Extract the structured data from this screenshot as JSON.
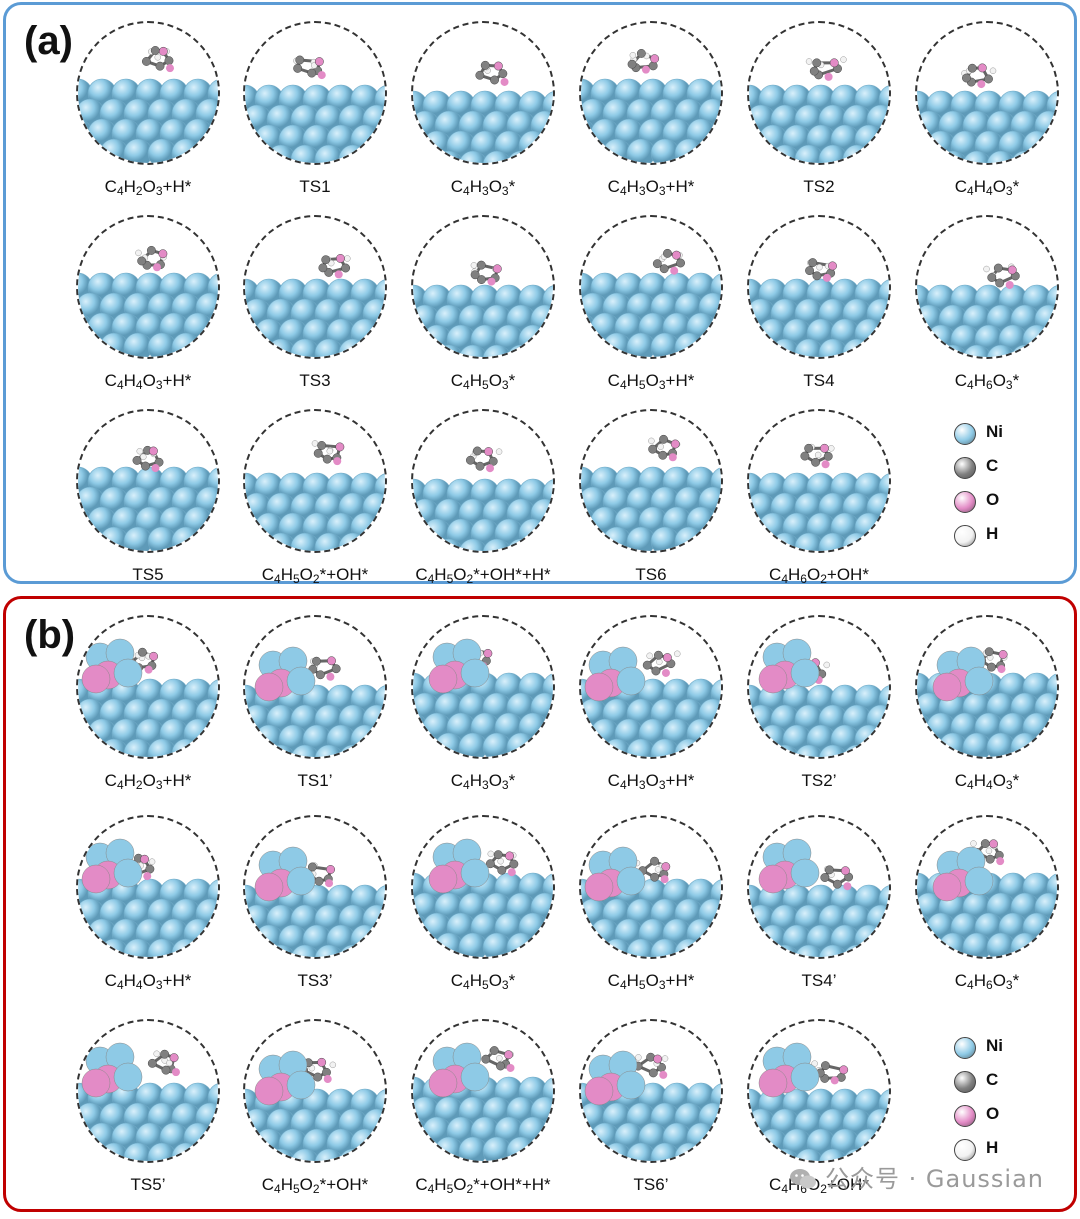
{
  "colors": {
    "panel_a_border": "#5b9bd5",
    "panel_b_border": "#c00000",
    "ni": "#8ecae6",
    "c": "#808080",
    "o": "#e38bc6",
    "h": "#f2f2f2"
  },
  "panels": [
    {
      "label": "(a)",
      "cells": [
        [
          {
            "t": "C"
          },
          {
            "t": "4",
            "s": 1
          },
          {
            "t": "H"
          },
          {
            "t": "2",
            "s": 1
          },
          {
            "t": "O"
          },
          {
            "t": "3",
            "s": 1
          },
          {
            "t": "+H*"
          }
        ],
        [
          {
            "t": "TS1"
          }
        ],
        [
          {
            "t": "C"
          },
          {
            "t": "4",
            "s": 1
          },
          {
            "t": "H"
          },
          {
            "t": "3",
            "s": 1
          },
          {
            "t": "O"
          },
          {
            "t": "3",
            "s": 1
          },
          {
            "t": "*"
          }
        ],
        [
          {
            "t": "C"
          },
          {
            "t": "4",
            "s": 1
          },
          {
            "t": "H"
          },
          {
            "t": "3",
            "s": 1
          },
          {
            "t": "O"
          },
          {
            "t": "3",
            "s": 1
          },
          {
            "t": "+H*"
          }
        ],
        [
          {
            "t": "TS2"
          }
        ],
        [
          {
            "t": "C"
          },
          {
            "t": "4",
            "s": 1
          },
          {
            "t": "H"
          },
          {
            "t": "4",
            "s": 1
          },
          {
            "t": "O"
          },
          {
            "t": "3",
            "s": 1
          },
          {
            "t": "*"
          }
        ],
        [
          {
            "t": "C"
          },
          {
            "t": "4",
            "s": 1
          },
          {
            "t": "H"
          },
          {
            "t": "4",
            "s": 1
          },
          {
            "t": "O"
          },
          {
            "t": "3",
            "s": 1
          },
          {
            "t": "+H*"
          }
        ],
        [
          {
            "t": "TS3"
          }
        ],
        [
          {
            "t": "C"
          },
          {
            "t": "4",
            "s": 1
          },
          {
            "t": "H"
          },
          {
            "t": "5",
            "s": 1
          },
          {
            "t": "O"
          },
          {
            "t": "3",
            "s": 1
          },
          {
            "t": "*"
          }
        ],
        [
          {
            "t": "C"
          },
          {
            "t": "4",
            "s": 1
          },
          {
            "t": "H"
          },
          {
            "t": "5",
            "s": 1
          },
          {
            "t": "O"
          },
          {
            "t": "3",
            "s": 1
          },
          {
            "t": "+H*"
          }
        ],
        [
          {
            "t": "TS4"
          }
        ],
        [
          {
            "t": "C"
          },
          {
            "t": "4",
            "s": 1
          },
          {
            "t": "H"
          },
          {
            "t": "6",
            "s": 1
          },
          {
            "t": "O"
          },
          {
            "t": "3",
            "s": 1
          },
          {
            "t": "*"
          }
        ],
        [
          {
            "t": "TS5"
          }
        ],
        [
          {
            "t": "C"
          },
          {
            "t": "4",
            "s": 1
          },
          {
            "t": "H"
          },
          {
            "t": "5",
            "s": 1
          },
          {
            "t": "O"
          },
          {
            "t": "2",
            "s": 1
          },
          {
            "t": "*+OH*"
          }
        ],
        [
          {
            "t": "C"
          },
          {
            "t": "4",
            "s": 1
          },
          {
            "t": "H"
          },
          {
            "t": "5",
            "s": 1
          },
          {
            "t": "O"
          },
          {
            "t": "2",
            "s": 1
          },
          {
            "t": "*+OH*+H*"
          }
        ],
        [
          {
            "t": "TS6"
          }
        ],
        [
          {
            "t": "C"
          },
          {
            "t": "4",
            "s": 1
          },
          {
            "t": "H"
          },
          {
            "t": "6",
            "s": 1
          },
          {
            "t": "O"
          },
          {
            "t": "2",
            "s": 1
          },
          {
            "t": "+OH*"
          }
        ]
      ]
    },
    {
      "label": "(b)",
      "cells": [
        [
          {
            "t": "C"
          },
          {
            "t": "4",
            "s": 1
          },
          {
            "t": "H"
          },
          {
            "t": "2",
            "s": 1
          },
          {
            "t": "O"
          },
          {
            "t": "3",
            "s": 1
          },
          {
            "t": "+H*"
          }
        ],
        [
          {
            "t": "TS1’"
          }
        ],
        [
          {
            "t": "C"
          },
          {
            "t": "4",
            "s": 1
          },
          {
            "t": "H"
          },
          {
            "t": "3",
            "s": 1
          },
          {
            "t": "O"
          },
          {
            "t": "3",
            "s": 1
          },
          {
            "t": "*"
          }
        ],
        [
          {
            "t": "C"
          },
          {
            "t": "4",
            "s": 1
          },
          {
            "t": "H"
          },
          {
            "t": "3",
            "s": 1
          },
          {
            "t": "O"
          },
          {
            "t": "3",
            "s": 1
          },
          {
            "t": "+H*"
          }
        ],
        [
          {
            "t": "TS2’"
          }
        ],
        [
          {
            "t": "C"
          },
          {
            "t": "4",
            "s": 1
          },
          {
            "t": "H"
          },
          {
            "t": "4",
            "s": 1
          },
          {
            "t": "O"
          },
          {
            "t": "3",
            "s": 1
          },
          {
            "t": "*"
          }
        ],
        [
          {
            "t": "C"
          },
          {
            "t": "4",
            "s": 1
          },
          {
            "t": "H"
          },
          {
            "t": "4",
            "s": 1
          },
          {
            "t": "O"
          },
          {
            "t": "3",
            "s": 1
          },
          {
            "t": "+H*"
          }
        ],
        [
          {
            "t": "TS3’"
          }
        ],
        [
          {
            "t": "C"
          },
          {
            "t": "4",
            "s": 1
          },
          {
            "t": "H"
          },
          {
            "t": "5",
            "s": 1
          },
          {
            "t": "O"
          },
          {
            "t": "3",
            "s": 1
          },
          {
            "t": "*"
          }
        ],
        [
          {
            "t": "C"
          },
          {
            "t": "4",
            "s": 1
          },
          {
            "t": "H"
          },
          {
            "t": "5",
            "s": 1
          },
          {
            "t": "O"
          },
          {
            "t": "3",
            "s": 1
          },
          {
            "t": "+H*"
          }
        ],
        [
          {
            "t": "TS4’"
          }
        ],
        [
          {
            "t": "C"
          },
          {
            "t": "4",
            "s": 1
          },
          {
            "t": "H"
          },
          {
            "t": "6",
            "s": 1
          },
          {
            "t": "O"
          },
          {
            "t": "3",
            "s": 1
          },
          {
            "t": "*"
          }
        ],
        [
          {
            "t": "TS5’"
          }
        ],
        [
          {
            "t": "C"
          },
          {
            "t": "4",
            "s": 1
          },
          {
            "t": "H"
          },
          {
            "t": "5",
            "s": 1
          },
          {
            "t": "O"
          },
          {
            "t": "2",
            "s": 1
          },
          {
            "t": "*+OH*"
          }
        ],
        [
          {
            "t": "C"
          },
          {
            "t": "4",
            "s": 1
          },
          {
            "t": "H"
          },
          {
            "t": "5",
            "s": 1
          },
          {
            "t": "O"
          },
          {
            "t": "2",
            "s": 1
          },
          {
            "t": "*+OH*+H*"
          }
        ],
        [
          {
            "t": "TS6’"
          }
        ],
        [
          {
            "t": "C"
          },
          {
            "t": "4",
            "s": 1
          },
          {
            "t": "H"
          },
          {
            "t": "6",
            "s": 1
          },
          {
            "t": "O"
          },
          {
            "t": "2",
            "s": 1
          },
          {
            "t": "+OH*"
          }
        ]
      ]
    }
  ],
  "legend": [
    {
      "label": "Ni",
      "color": "#8ecae6"
    },
    {
      "label": "C",
      "color": "#808080"
    },
    {
      "label": "O",
      "color": "#e38bc6"
    },
    {
      "label": "H",
      "color": "#f2f2f2"
    }
  ],
  "watermark": "公众号 · Gaussian"
}
